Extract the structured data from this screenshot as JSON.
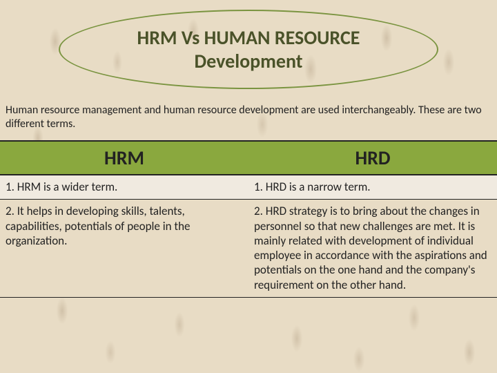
{
  "title": {
    "line1": "HRM Vs HUMAN RESOURCE",
    "line2": "Development"
  },
  "intro": "Human resource management and human resource development are used interchangeably. These are two different terms.",
  "table": {
    "type": "table",
    "columns": [
      "HRM",
      "HRD"
    ],
    "header_bg": "#8aa83e",
    "header_fontsize": 28,
    "cell_fontsize": 17,
    "border_color": "#222222",
    "alt_row_bg": "#f5f5f5",
    "rows": [
      {
        "hrm": "1. HRM is a wider term.",
        "hrd": "1. HRD is a narrow term."
      },
      {
        "hrm": "2. It helps in developing skills, talents, capabilities, potentials of people in the organization.",
        "hrd": "2. HRD strategy is to bring about the changes in personnel so that new challenges are met. It  is mainly related with development of individual employee in accordance with the aspirations and potentials on the one hand and the company's requirement on the other hand."
      }
    ]
  },
  "colors": {
    "background": "#e8dcc5",
    "title_text": "#4a5229",
    "oval_border": "#7a9440",
    "body_text": "#222222",
    "pattern_tint": "#8c7355"
  }
}
